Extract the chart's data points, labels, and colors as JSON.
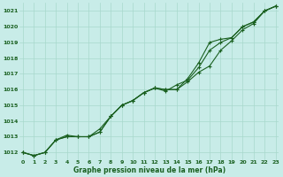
{
  "title": "Graphe pression niveau de la mer (hPa)",
  "bg_color": "#c8ece8",
  "grid_color": "#a8d8cc",
  "line_color": "#1a6020",
  "marker_color": "#1a6020",
  "ylim": [
    1011.5,
    1021.5
  ],
  "xlim": [
    -0.3,
    23.3
  ],
  "yticks": [
    1012,
    1013,
    1014,
    1015,
    1016,
    1017,
    1018,
    1019,
    1020,
    1021
  ],
  "xticks": [
    0,
    1,
    2,
    3,
    4,
    5,
    6,
    7,
    8,
    9,
    10,
    11,
    12,
    13,
    14,
    15,
    16,
    17,
    18,
    19,
    20,
    21,
    22,
    23
  ],
  "series1": [
    1012.0,
    1011.8,
    1012.0,
    1012.8,
    1013.0,
    1013.0,
    1013.0,
    1013.5,
    1014.3,
    1015.0,
    1015.3,
    1015.8,
    1016.1,
    1016.0,
    1016.0,
    1016.5,
    1017.1,
    1017.5,
    1018.5,
    1019.1,
    1019.8,
    1020.2,
    1021.0,
    1021.3
  ],
  "series2": [
    1012.0,
    1011.8,
    1012.0,
    1012.8,
    1013.0,
    1013.0,
    1013.0,
    1013.3,
    1014.3,
    1015.0,
    1015.3,
    1015.8,
    1016.1,
    1015.9,
    1016.3,
    1016.6,
    1017.4,
    1018.5,
    1019.0,
    1019.3,
    1020.0,
    1020.3,
    1021.0,
    1021.3
  ],
  "series3": [
    1012.0,
    1011.8,
    1012.0,
    1012.8,
    1013.1,
    1013.0,
    1013.0,
    1013.3,
    1014.3,
    1015.0,
    1015.3,
    1015.8,
    1016.1,
    1016.0,
    1016.0,
    1016.7,
    1017.7,
    1019.0,
    1019.2,
    1019.3,
    1020.0,
    1020.3,
    1021.0,
    1021.3
  ]
}
